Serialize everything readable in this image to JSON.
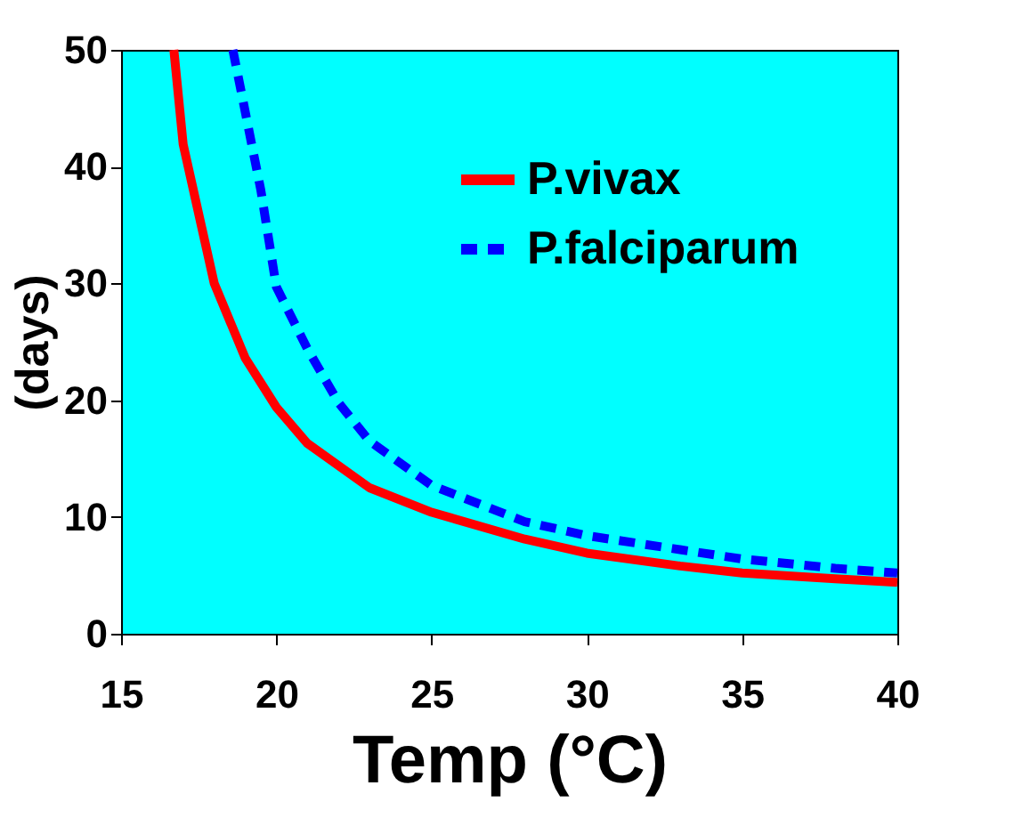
{
  "chart_data": {
    "type": "line",
    "xlabel": "Temp (°C)",
    "ylabel": "(days)",
    "xlim": [
      15,
      40
    ],
    "xticks": [
      15,
      20,
      25,
      30,
      35,
      40
    ],
    "ylim": [
      0,
      50
    ],
    "yticks": [
      0,
      10,
      20,
      30,
      40,
      50
    ],
    "grid": false,
    "legend": "top right",
    "marker": "none",
    "series": [
      {
        "name": "P.vivax",
        "color": "#ff0000",
        "line_style": "solid",
        "x": [
          16.7,
          17,
          18,
          19,
          20,
          21,
          23,
          25,
          28,
          30,
          33,
          35,
          38,
          40
        ],
        "values": [
          50,
          41.9,
          30,
          23.6,
          19.4,
          16.3,
          12.5,
          10.4,
          8.1,
          6.9,
          5.8,
          5.2,
          4.7,
          4.4
        ]
      },
      {
        "name": "P.falciparum",
        "color": "#0000ff",
        "line_style": "dashed",
        "x": [
          18.6,
          19.5,
          20,
          21,
          22,
          23,
          25,
          28,
          30,
          33,
          35,
          38,
          40
        ],
        "values": [
          50,
          38,
          29.7,
          24.4,
          19.8,
          16.5,
          12.7,
          9.6,
          8.4,
          7.2,
          6.4,
          5.6,
          5.2
        ]
      }
    ]
  }
}
